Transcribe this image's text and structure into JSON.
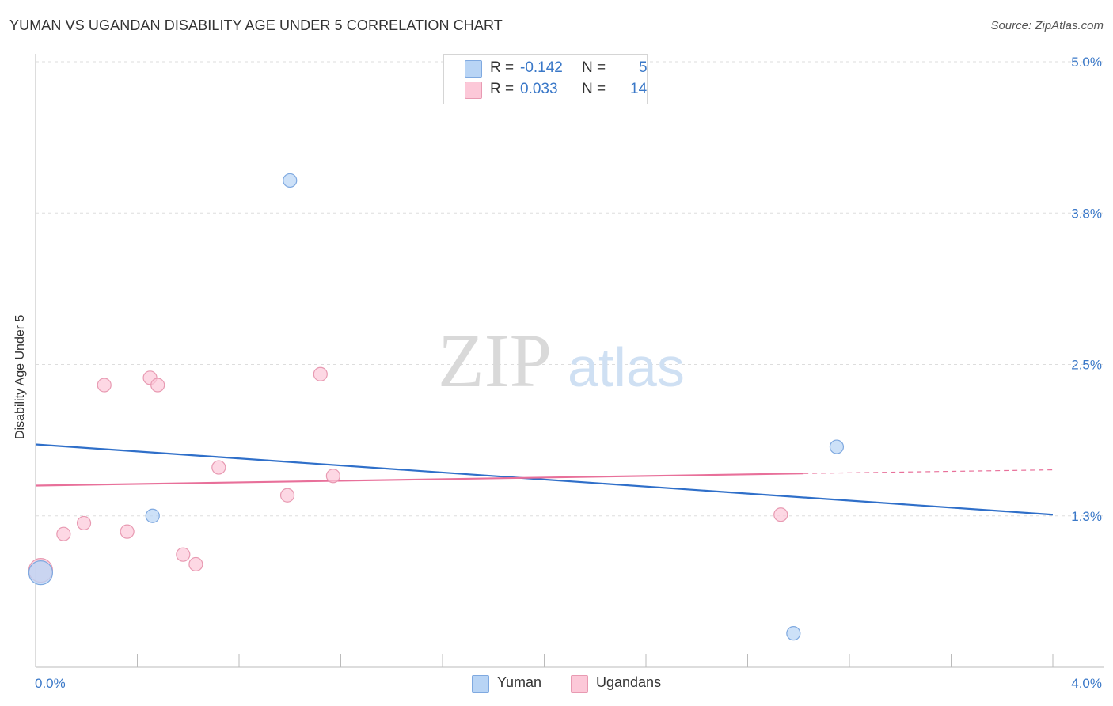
{
  "header": {
    "title": "YUMAN VS UGANDAN DISABILITY AGE UNDER 5 CORRELATION CHART",
    "source": "Source: ZipAtlas.com"
  },
  "watermark": {
    "zip": "ZIP",
    "atlas": "atlas"
  },
  "legend": {
    "rows": [
      {
        "r_label": "R =",
        "r_value": "-0.142",
        "n_label": "N =",
        "n_value": "5",
        "color": "#b8d4f5",
        "border": "#7fa9e0"
      },
      {
        "r_label": "R =",
        "r_value": "0.033",
        "n_label": "N =",
        "n_value": "14",
        "color": "#fcc8d8",
        "border": "#e89ab2"
      }
    ]
  },
  "bottom_legend": [
    {
      "label": "Yuman",
      "color": "#b8d4f5",
      "border": "#7fa9e0"
    },
    {
      "label": "Ugandans",
      "color": "#fcc8d8",
      "border": "#e89ab2"
    }
  ],
  "chart_data": {
    "type": "scatter",
    "title": "YUMAN VS UGANDAN DISABILITY AGE UNDER 5 CORRELATION CHART",
    "xlabel": "",
    "ylabel": "Disability Age Under 5",
    "xlim": [
      0.0,
      4.0
    ],
    "ylim": [
      0.0,
      5.0
    ],
    "x_tick_labels": [
      "0.0%",
      "4.0%"
    ],
    "y_ticks": [
      1.25,
      2.5,
      3.75,
      5.0
    ],
    "y_tick_labels": [
      "1.3%",
      "2.5%",
      "3.8%",
      "5.0%"
    ],
    "grid": true,
    "series": [
      {
        "name": "Yuman",
        "color": "#7fa9e0",
        "fill": "#b8d4f5",
        "line_color": "#2f6fc9",
        "points": [
          {
            "x": 0.02,
            "y": 0.78,
            "size": "large"
          },
          {
            "x": 0.46,
            "y": 1.25
          },
          {
            "x": 1.0,
            "y": 4.02
          },
          {
            "x": 2.98,
            "y": 0.28
          },
          {
            "x": 3.15,
            "y": 1.82
          }
        ],
        "trend": {
          "x": [
            0.0,
            4.0
          ],
          "y": [
            1.84,
            1.26
          ]
        }
      },
      {
        "name": "Ugandans",
        "color": "#e89ab2",
        "fill": "#fcc8d8",
        "line_color": "#e8709a",
        "points": [
          {
            "x": 0.02,
            "y": 0.8,
            "size": "large"
          },
          {
            "x": 0.11,
            "y": 1.1
          },
          {
            "x": 0.19,
            "y": 1.19
          },
          {
            "x": 0.27,
            "y": 2.33
          },
          {
            "x": 0.36,
            "y": 1.12
          },
          {
            "x": 0.45,
            "y": 2.39
          },
          {
            "x": 0.48,
            "y": 2.33
          },
          {
            "x": 0.58,
            "y": 0.93
          },
          {
            "x": 0.63,
            "y": 0.85
          },
          {
            "x": 0.72,
            "y": 1.65
          },
          {
            "x": 0.99,
            "y": 1.42
          },
          {
            "x": 1.12,
            "y": 2.42
          },
          {
            "x": 1.17,
            "y": 1.58
          },
          {
            "x": 2.93,
            "y": 1.26
          }
        ],
        "trend": {
          "x": [
            0.0,
            3.02
          ],
          "y": [
            1.5,
            1.6
          ]
        },
        "trend_dashed": {
          "x": [
            3.02,
            4.0
          ],
          "y": [
            1.6,
            1.63
          ]
        }
      }
    ]
  }
}
